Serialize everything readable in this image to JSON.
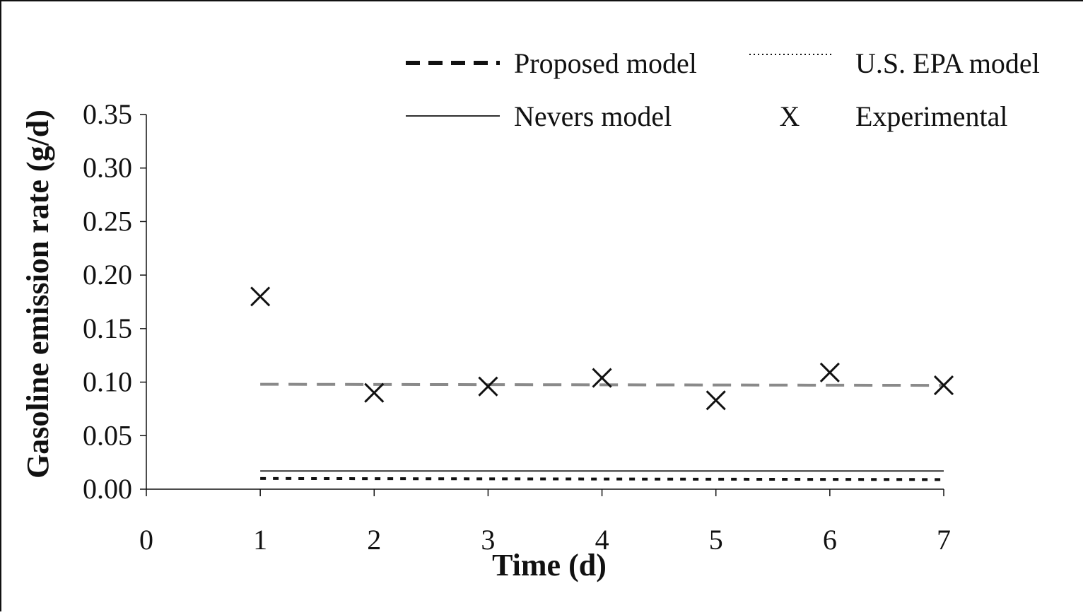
{
  "chart_data": {
    "type": "line",
    "title": "",
    "xlabel": "Time (d)",
    "ylabel": "Gasoline emission rate (g/d)",
    "xlim": [
      0,
      7
    ],
    "ylim": [
      0,
      0.35
    ],
    "x_ticks": [
      0,
      1,
      2,
      3,
      4,
      5,
      6,
      7
    ],
    "y_ticks": [
      0.0,
      0.05,
      0.1,
      0.15,
      0.2,
      0.25,
      0.3,
      0.35
    ],
    "y_tick_labels": [
      "0.00",
      "0.05",
      "0.10",
      "0.15",
      "0.20",
      "0.25",
      "0.30",
      "0.35"
    ],
    "x_tick_labels": [
      "0",
      "1",
      "2",
      "3",
      "4",
      "5",
      "6",
      "7"
    ],
    "grid": false,
    "legend_position": "top",
    "series": [
      {
        "name": "Proposed model",
        "style": "dashed",
        "marker": "none",
        "x": [
          1,
          7
        ],
        "y": [
          0.01,
          0.009
        ]
      },
      {
        "name": "U.S. EPA model",
        "style": "dotted",
        "marker": "none",
        "x": [
          1,
          7
        ],
        "y": [
          0.098,
          0.097
        ]
      },
      {
        "name": "Nevers model",
        "style": "solid",
        "marker": "none",
        "x": [
          1,
          7
        ],
        "y": [
          0.017,
          0.017
        ]
      },
      {
        "name": "Experimental",
        "style": "none",
        "marker": "X",
        "x": [
          1,
          2,
          3,
          4,
          5,
          6,
          7
        ],
        "y": [
          0.18,
          0.09,
          0.096,
          0.104,
          0.083,
          0.109,
          0.097
        ]
      }
    ],
    "legend_marker_text": "X",
    "colors": {
      "ink": "#111111",
      "dotted": "#8a8a8a"
    }
  }
}
